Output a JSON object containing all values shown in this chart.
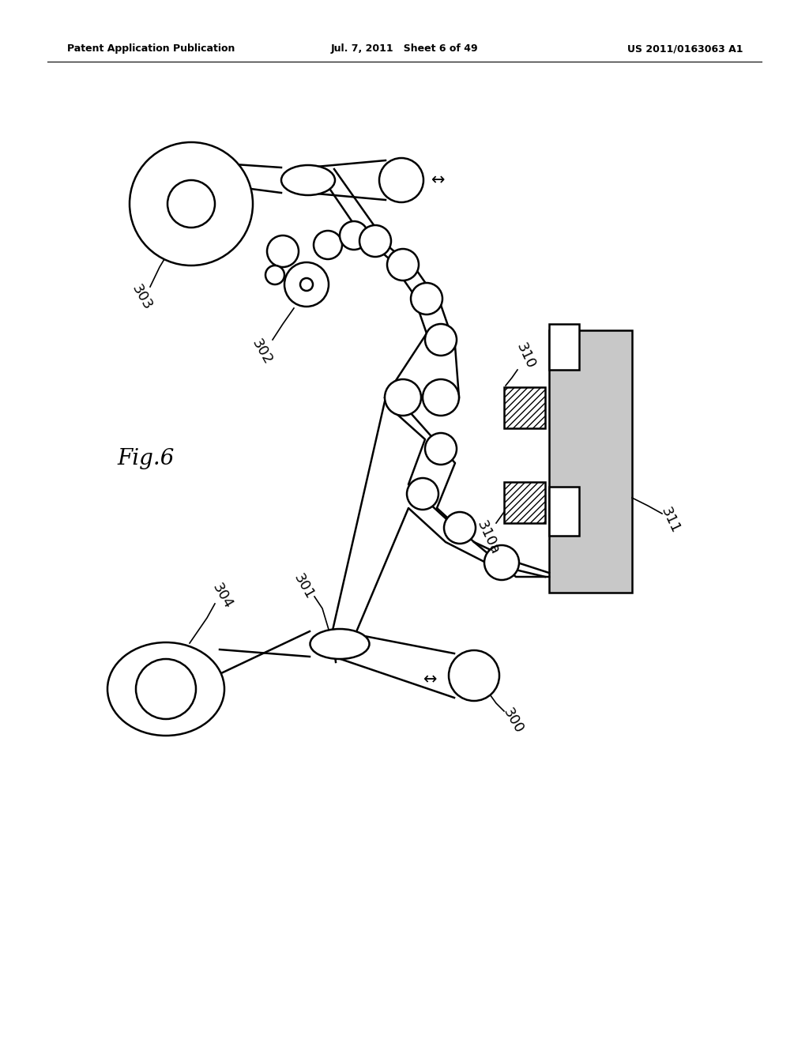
{
  "bg_color": "#ffffff",
  "line_color": "#000000",
  "header_left": "Patent Application Publication",
  "header_mid": "Jul. 7, 2011   Sheet 6 of 49",
  "header_right": "US 2011/0163063 A1"
}
